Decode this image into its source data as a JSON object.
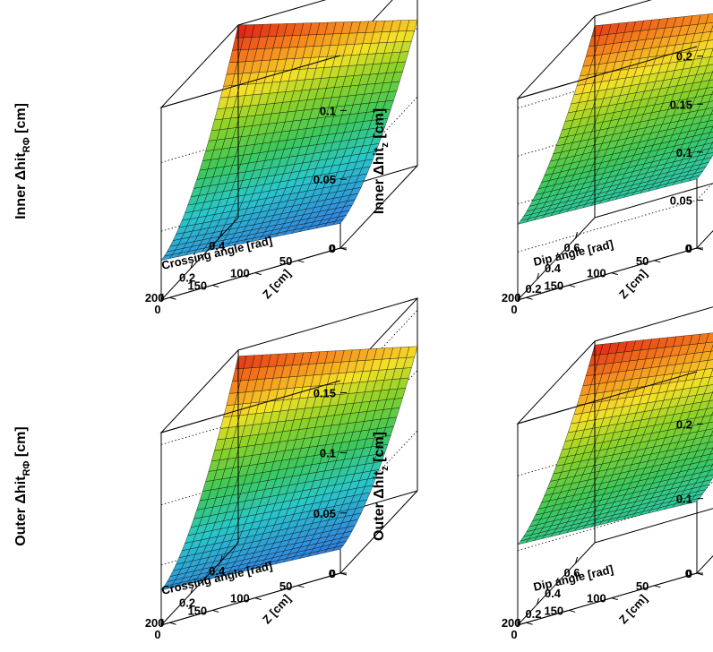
{
  "chart_data": [
    {
      "type": "surface",
      "ylabel": "Inner Δhit",
      "ylabel_sub": "RΦ",
      "ylabel_unit": " [cm]",
      "xlabel": "Crossing angle [rad]",
      "zlabel": "Z [cm]",
      "x_range": [
        0,
        0.52
      ],
      "z_range": [
        0,
        210
      ],
      "v_range": [
        0,
        0.14
      ],
      "x_ticks": [
        0,
        0.2,
        0.4
      ],
      "x_tick_labels": [
        "0",
        "0.2",
        "0.4"
      ],
      "z_ticks": [
        0,
        50,
        100,
        150,
        200
      ],
      "z_tick_labels": [
        "0",
        "50",
        "100",
        "150",
        "200"
      ],
      "v_ticks": [
        0,
        0.05,
        0.1
      ],
      "v_tick_labels": [
        "0",
        "0.05",
        "0.1"
      ],
      "values_at_corners": {
        "x0_z200": 0.029,
        "x0_z0": 0.018,
        "xmax_z200": 0.14,
        "xmax_z0": 0.106
      },
      "color_scale": "rainbow (blue low → red high)"
    },
    {
      "type": "surface",
      "ylabel": "Inner Δhit",
      "ylabel_sub": "z",
      "ylabel_unit": " [cm]",
      "xlabel": "Dip angle [rad]",
      "zlabel": "Z [cm]",
      "x_range": [
        0,
        0.8
      ],
      "z_range": [
        0,
        210
      ],
      "v_range": [
        0,
        0.21
      ],
      "x_ticks": [
        0,
        0.2,
        0.4,
        0.6
      ],
      "x_tick_labels": [
        "0",
        "0.2",
        "0.4",
        "0.6"
      ],
      "z_ticks": [
        0,
        50,
        100,
        150,
        200
      ],
      "z_tick_labels": [
        "0",
        "50",
        "100",
        "150",
        "200"
      ],
      "v_ticks": [
        0,
        0.05,
        0.1,
        0.15,
        0.2
      ],
      "v_tick_labels": [
        "0",
        "0.05",
        "0.1",
        "0.15",
        "0.2"
      ],
      "values_at_corners": {
        "x0_z200": 0.079,
        "x0_z0": 0.072,
        "xmax_z200": 0.2,
        "xmax_z0": 0.165
      },
      "color_scale": "rainbow (blue low → red high)"
    },
    {
      "type": "surface",
      "ylabel": "Outer Δhit",
      "ylabel_sub": "RΦ",
      "ylabel_unit": " [cm]",
      "xlabel": "Crossing angle [rad]",
      "zlabel": "Z [cm]",
      "x_range": [
        0,
        0.52
      ],
      "z_range": [
        0,
        210
      ],
      "v_range": [
        0,
        0.16
      ],
      "x_ticks": [
        0,
        0.2,
        0.4
      ],
      "x_tick_labels": [
        "0",
        "0.2",
        "0.4"
      ],
      "z_ticks": [
        0,
        50,
        100,
        150,
        200
      ],
      "z_tick_labels": [
        "0",
        "50",
        "100",
        "150",
        "200"
      ],
      "v_ticks": [
        0,
        0.05,
        0.1,
        0.15
      ],
      "v_tick_labels": [
        "0",
        "0.05",
        "0.1",
        "0.15"
      ],
      "values_at_corners": {
        "x0_z200": 0.029,
        "x0_z0": 0.02,
        "xmax_z200": 0.155,
        "xmax_z0": 0.12
      },
      "color_scale": "rainbow (blue low → red high)"
    },
    {
      "type": "surface",
      "ylabel": "Outer Δhit",
      "ylabel_sub": "z",
      "ylabel_unit": " [cm]",
      "xlabel": "Dip angle [rad]",
      "zlabel": "Z [cm]",
      "x_range": [
        0,
        0.8
      ],
      "z_range": [
        0,
        210
      ],
      "v_range": [
        0,
        0.27
      ],
      "x_ticks": [
        0,
        0.2,
        0.4,
        0.6
      ],
      "x_tick_labels": [
        "0",
        "0.2",
        "0.4",
        "0.6"
      ],
      "z_ticks": [
        0,
        50,
        100,
        150,
        200
      ],
      "z_tick_labels": [
        "0",
        "50",
        "100",
        "150",
        "200"
      ],
      "v_ticks": [
        0,
        0.1,
        0.2
      ],
      "v_tick_labels": [
        "0",
        "0.1",
        "0.2"
      ],
      "values_at_corners": {
        "x0_z200": 0.108,
        "x0_z0": 0.096,
        "xmax_z200": 0.265,
        "xmax_z0": 0.22
      },
      "color_scale": "rainbow (blue low → red high)"
    }
  ]
}
